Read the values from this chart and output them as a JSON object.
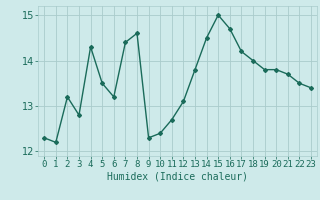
{
  "x": [
    0,
    1,
    2,
    3,
    4,
    5,
    6,
    7,
    8,
    9,
    10,
    11,
    12,
    13,
    14,
    15,
    16,
    17,
    18,
    19,
    20,
    21,
    22,
    23
  ],
  "y": [
    12.3,
    12.2,
    13.2,
    12.8,
    14.3,
    13.5,
    13.2,
    14.4,
    14.6,
    12.3,
    12.4,
    12.7,
    13.1,
    13.8,
    14.5,
    15.0,
    14.7,
    14.2,
    14.0,
    13.8,
    13.8,
    13.7,
    13.5,
    13.4
  ],
  "line_color": "#1a6b5a",
  "marker": "D",
  "marker_size": 2,
  "linewidth": 1.0,
  "xlabel": "Humidex (Indice chaleur)",
  "xlabel_fontsize": 7,
  "ylim": [
    11.9,
    15.2
  ],
  "yticks": [
    12,
    13,
    14,
    15
  ],
  "xtick_labels": [
    "0",
    "1",
    "2",
    "3",
    "4",
    "5",
    "6",
    "7",
    "8",
    "9",
    "10",
    "11",
    "12",
    "13",
    "14",
    "15",
    "16",
    "17",
    "18",
    "19",
    "20",
    "21",
    "22",
    "23"
  ],
  "bg_color": "#ceeaea",
  "grid_color": "#aacccc",
  "tick_fontsize": 6.5,
  "ytick_fontsize": 7
}
